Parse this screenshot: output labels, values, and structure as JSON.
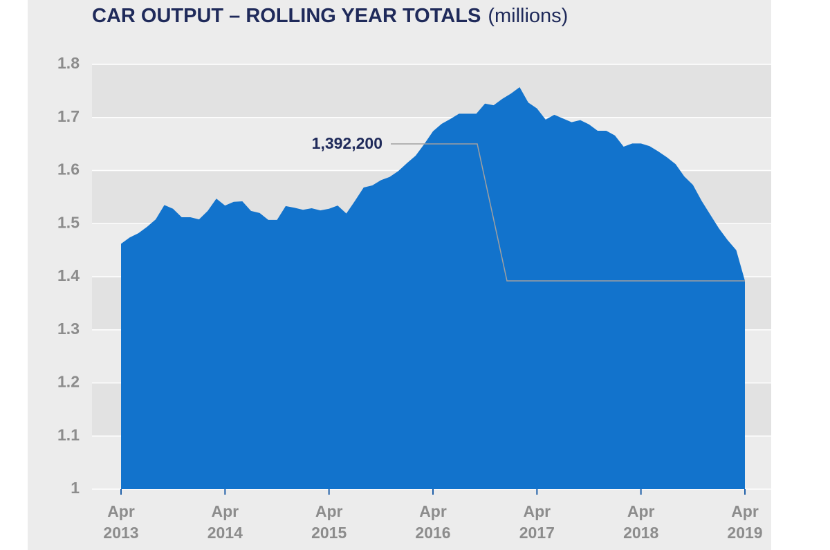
{
  "chart_data": {
    "type": "area",
    "title": "CAR OUTPUT – ROLLING YEAR TOTALS",
    "subtitle": "(millions)",
    "color": "#1273cc",
    "categories": [
      "Apr 2013",
      null,
      null,
      null,
      null,
      null,
      null,
      null,
      null,
      null,
      null,
      null,
      "Apr 2014",
      null,
      null,
      null,
      null,
      null,
      null,
      null,
      null,
      null,
      null,
      null,
      "Apr 2015",
      null,
      null,
      null,
      null,
      null,
      null,
      null,
      null,
      null,
      null,
      null,
      "Apr 2016",
      null,
      null,
      null,
      null,
      null,
      null,
      null,
      null,
      null,
      null,
      null,
      "Apr 2017",
      null,
      null,
      null,
      null,
      null,
      null,
      null,
      null,
      null,
      null,
      null,
      "Apr 2018",
      null,
      null,
      null,
      null,
      null,
      null,
      null,
      null,
      null,
      null,
      null,
      "Apr 2019"
    ],
    "values": [
      1.462,
      1.474,
      1.482,
      1.494,
      1.508,
      1.535,
      1.528,
      1.512,
      1.512,
      1.508,
      1.524,
      1.547,
      1.534,
      1.541,
      1.542,
      1.524,
      1.52,
      1.507,
      1.507,
      1.533,
      1.53,
      1.526,
      1.529,
      1.525,
      1.528,
      1.534,
      1.519,
      1.543,
      1.568,
      1.572,
      1.582,
      1.588,
      1.599,
      1.614,
      1.628,
      1.65,
      1.674,
      1.688,
      1.697,
      1.707,
      1.707,
      1.707,
      1.726,
      1.723,
      1.735,
      1.745,
      1.757,
      1.728,
      1.717,
      1.696,
      1.705,
      1.698,
      1.691,
      1.695,
      1.687,
      1.675,
      1.675,
      1.666,
      1.645,
      1.651,
      1.651,
      1.646,
      1.636,
      1.625,
      1.612,
      1.589,
      1.573,
      1.543,
      1.517,
      1.491,
      1.469,
      1.45,
      1.3922
    ],
    "value_labels": [
      null,
      null,
      null,
      null,
      null,
      null,
      null,
      null,
      null,
      null,
      null,
      null,
      null,
      null,
      null,
      null,
      null,
      null,
      null,
      null,
      null,
      null,
      null,
      null,
      null,
      null,
      null,
      null,
      null,
      null,
      null,
      null,
      null,
      null,
      null,
      null,
      null,
      null,
      null,
      null,
      null,
      null,
      null,
      null,
      null,
      null,
      null,
      null,
      null,
      null,
      null,
      null,
      null,
      null,
      null,
      null,
      null,
      null,
      null,
      null,
      null,
      null,
      null,
      null,
      null,
      null,
      null,
      null,
      null,
      null,
      null,
      null,
      "1,392,200"
    ],
    "ylim": [
      1,
      1.8
    ],
    "yticks": [
      1,
      1.1,
      1.2,
      1.3,
      1.4,
      1.5,
      1.6,
      1.7,
      1.8
    ],
    "grid": true
  }
}
